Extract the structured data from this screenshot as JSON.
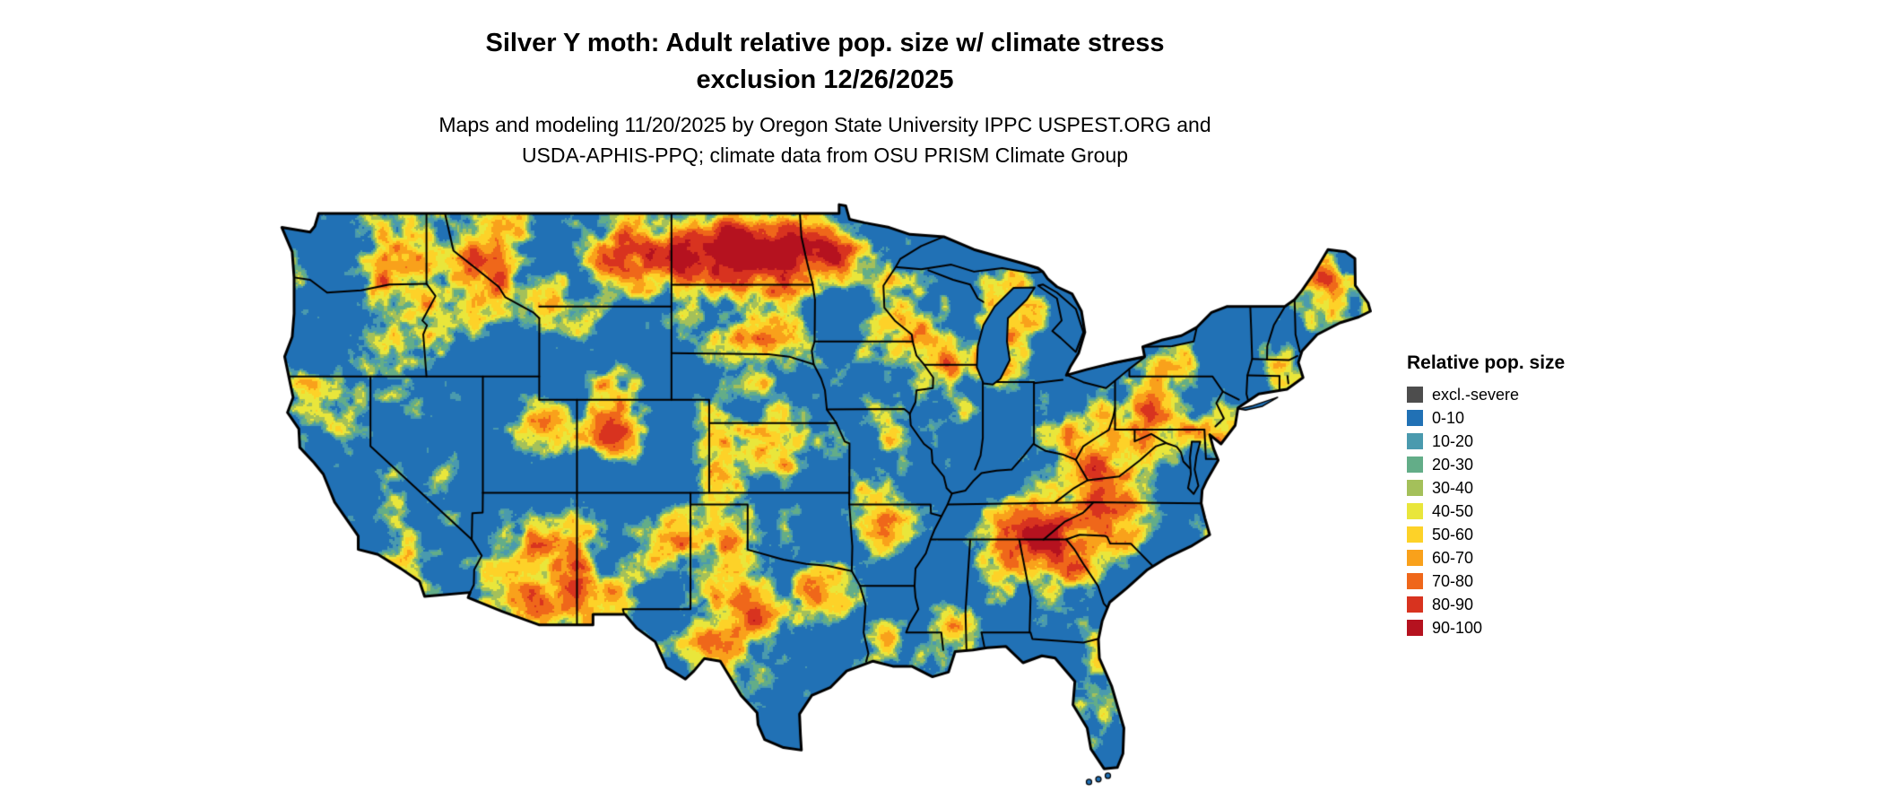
{
  "title": {
    "line1": "Silver Y moth: Adult relative pop. size w/ climate stress",
    "line2": "exclusion 12/26/2025"
  },
  "subtitle": {
    "line1": "Maps and modeling 11/20/2025 by Oregon State University IPPC USPEST.ORG and",
    "line2": "USDA-APHIS-PPQ; climate data from OSU PRISM Climate Group"
  },
  "legend": {
    "title": "Relative pop. size",
    "entries": [
      {
        "label": "excl.-severe",
        "color": "#4d4d4d"
      },
      {
        "label": "0-10",
        "color": "#2171b5"
      },
      {
        "label": "10-20",
        "color": "#4a9aae"
      },
      {
        "label": "20-30",
        "color": "#63ad88"
      },
      {
        "label": "30-40",
        "color": "#a4c05a"
      },
      {
        "label": "40-50",
        "color": "#e9e63b"
      },
      {
        "label": "50-60",
        "color": "#fdd228"
      },
      {
        "label": "60-70",
        "color": "#f9a11b"
      },
      {
        "label": "70-80",
        "color": "#ef671a"
      },
      {
        "label": "80-90",
        "color": "#d8331f"
      },
      {
        "label": "90-100",
        "color": "#b5121f"
      }
    ]
  },
  "map": {
    "region": "Continental United States",
    "border_color": "#000000",
    "water_color": "#ffffff"
  }
}
